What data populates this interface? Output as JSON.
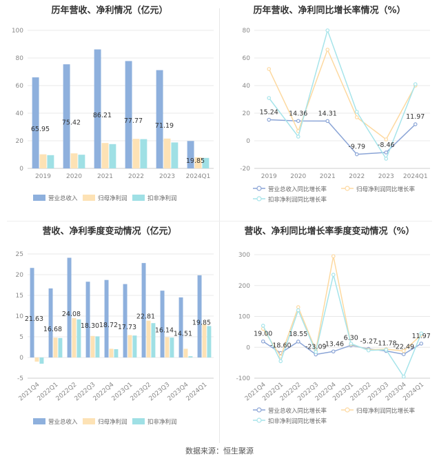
{
  "footer": "数据来源：恒生聚源",
  "colors": {
    "revenue": "#8eb0dd",
    "net_profit": "#fde2b5",
    "deducted_profit": "#9fe0e5",
    "grid": "#e8e8e8",
    "axis_text": "#888888"
  },
  "chart_data": [
    {
      "type": "bar",
      "title": "历年营收、净利情况（亿元）",
      "categories": [
        "2019",
        "2020",
        "2021",
        "2022",
        "2023",
        "2024Q1"
      ],
      "ylim": [
        0,
        100
      ],
      "yticks": [
        0,
        20,
        40,
        60,
        80,
        100
      ],
      "legend": "bottom",
      "grid": true,
      "series": [
        {
          "name": "营业总收入",
          "values": [
            65.95,
            75.42,
            86.21,
            77.77,
            71.19,
            19.85
          ]
        },
        {
          "name": "归母净利润",
          "values": [
            10.2,
            10.9,
            18.4,
            21.4,
            21.6,
            8.0
          ]
        },
        {
          "name": "扣非净利润",
          "values": [
            9.6,
            9.9,
            17.6,
            21.2,
            18.8,
            7.6
          ]
        }
      ],
      "data_labels": [
        "65.95",
        "75.42",
        "86.21",
        "77.77",
        "71.19",
        "19.85"
      ]
    },
    {
      "type": "line",
      "title": "历年营收、净利同比增长率情况（%）",
      "categories": [
        "2019",
        "2020",
        "2021",
        "2022",
        "2023",
        "2024Q1"
      ],
      "ylim": [
        -20,
        80
      ],
      "yticks": [
        -20,
        0,
        20,
        40,
        60,
        80
      ],
      "legend": "bottom",
      "grid": true,
      "series": [
        {
          "name": "营业总收入同比增长率",
          "values": [
            15.24,
            14.36,
            14.31,
            -9.79,
            -8.46,
            11.97
          ]
        },
        {
          "name": "归母净利润同比增长率",
          "values": [
            52.0,
            7.0,
            66.0,
            17.0,
            1.0,
            40.0
          ]
        },
        {
          "name": "扣非净利润同比增长率",
          "values": [
            31.0,
            3.0,
            80.0,
            21.0,
            -13.0,
            41.0
          ]
        }
      ],
      "data_labels": [
        "15.24",
        "14.36",
        "14.31",
        "-9.79",
        "-8.46",
        "11.97"
      ]
    },
    {
      "type": "bar",
      "title": "营收、净利季度变动情况（亿元）",
      "categories": [
        "2021Q4",
        "2022Q1",
        "2022Q2",
        "2022Q3",
        "2022Q4",
        "2023Q1",
        "2023Q2",
        "2023Q3",
        "2023Q4",
        "2024Q1"
      ],
      "ylim": [
        -5,
        25
      ],
      "yticks": [
        -5,
        0,
        5,
        10,
        15,
        20,
        25
      ],
      "legend": "bottom",
      "grid": true,
      "series": [
        {
          "name": "营业总收入",
          "values": [
            21.63,
            16.68,
            24.08,
            18.3,
            18.72,
            17.73,
            22.81,
            16.14,
            14.51,
            19.85
          ]
        },
        {
          "name": "归母净利润",
          "values": [
            -1.0,
            4.8,
            9.5,
            5.2,
            2.1,
            5.4,
            8.9,
            4.9,
            2.1,
            8.0
          ]
        },
        {
          "name": "扣非净利润",
          "values": [
            -1.5,
            4.7,
            9.2,
            5.1,
            2.0,
            5.3,
            8.3,
            4.8,
            0.3,
            7.6
          ]
        }
      ],
      "data_labels": [
        "21.63",
        "16.68",
        "24.08",
        "18.30",
        "18.72",
        "17.73",
        "22.81",
        "16.14",
        "14.51",
        "19.85"
      ]
    },
    {
      "type": "line",
      "title": "营收、净利同比增长率季度变动情况（%）",
      "categories": [
        "2021Q4",
        "2022Q1",
        "2022Q2",
        "2022Q3",
        "2022Q4",
        "2023Q1",
        "2023Q2",
        "2023Q3",
        "2023Q4",
        "2024Q1"
      ],
      "ylim": [
        -100,
        300
      ],
      "yticks": [
        -100,
        0,
        100,
        200,
        300
      ],
      "legend": "bottom",
      "grid": true,
      "series": [
        {
          "name": "营业总收入同比增长率",
          "values": [
            19.0,
            -18.6,
            18.55,
            -23.09,
            -13.46,
            6.3,
            -5.27,
            -11.78,
            -22.49,
            11.97
          ]
        },
        {
          "name": "归母净利润同比增长率",
          "values": [
            60.0,
            -30.0,
            130.0,
            -10.0,
            295.0,
            10.0,
            -8.0,
            -6.0,
            -12.0,
            40.0
          ]
        },
        {
          "name": "扣非净利润同比增长率",
          "values": [
            70.0,
            -45.0,
            120.0,
            -15.0,
            235.0,
            12.0,
            -10.0,
            -8.0,
            -95.0,
            45.0
          ]
        }
      ],
      "data_labels": [
        "19.00",
        "-18.60",
        "18.55",
        "-23.09",
        "-13.46",
        "6.30",
        "-5.27",
        "-11.78",
        "-22.49",
        "11.97"
      ]
    }
  ]
}
